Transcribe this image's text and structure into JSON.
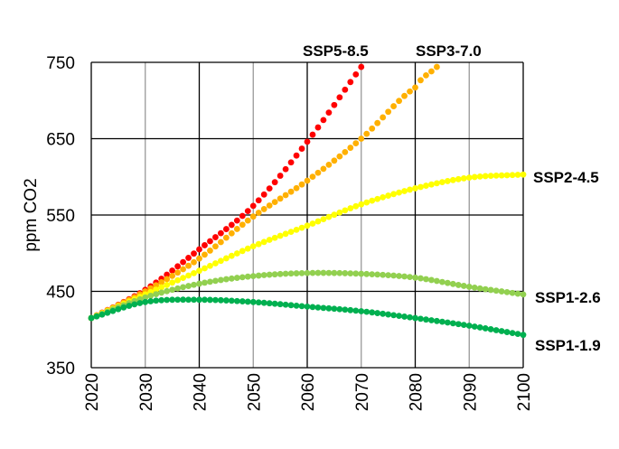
{
  "chart_data": {
    "type": "scatter",
    "title": "",
    "xlabel": "",
    "ylabel": "ppm CO2",
    "xlim": [
      2020,
      2100
    ],
    "ylim": [
      350,
      750
    ],
    "xticks": [
      "2020",
      "2030",
      "2040",
      "2050",
      "2060",
      "2070",
      "2080",
      "2090",
      "2100"
    ],
    "yticks": [
      "350",
      "450",
      "550",
      "650",
      "750"
    ],
    "grid": true,
    "legend": "inline labels at series ends",
    "series": [
      {
        "name": "SSP5-8.5",
        "color": "#ff0000",
        "x": [
          2020,
          2030,
          2040,
          2050,
          2060,
          2070
        ],
        "values": [
          415,
          452,
          505,
          562,
          646,
          744
        ]
      },
      {
        "name": "SSP3-7.0",
        "color": "#ffb000",
        "x": [
          2020,
          2030,
          2040,
          2050,
          2060,
          2070,
          2080,
          2084
        ],
        "values": [
          415,
          450,
          493,
          548,
          595,
          650,
          717,
          744
        ]
      },
      {
        "name": "SSP2-4.5",
        "color": "#ffff00",
        "x": [
          2020,
          2030,
          2040,
          2050,
          2060,
          2070,
          2080,
          2090,
          2100
        ],
        "values": [
          415,
          446,
          477,
          509,
          536,
          564,
          585,
          599,
          603
        ]
      },
      {
        "name": "SSP1-2.6",
        "color": "#92d050",
        "x": [
          2020,
          2030,
          2040,
          2050,
          2060,
          2070,
          2080,
          2090,
          2100
        ],
        "values": [
          415,
          442,
          460,
          470,
          474,
          473,
          468,
          456,
          446
        ]
      },
      {
        "name": "SSP1-1.9",
        "color": "#00b050",
        "x": [
          2020,
          2030,
          2040,
          2050,
          2060,
          2070,
          2080,
          2090,
          2100
        ],
        "values": [
          415,
          436,
          439,
          436,
          430,
          424,
          415,
          405,
          393
        ]
      }
    ]
  }
}
